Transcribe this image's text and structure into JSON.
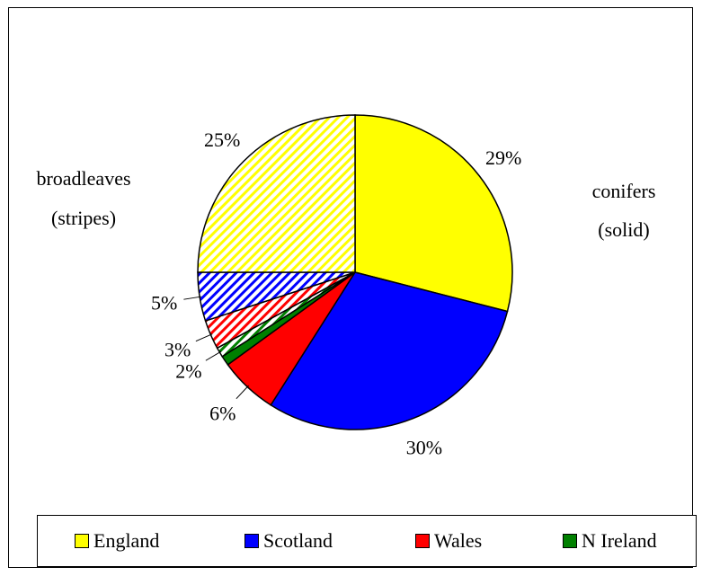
{
  "chart_data": {
    "type": "pie",
    "annotations": {
      "broadleaves_line1": "broadleaves",
      "broadleaves_line2": "(stripes)",
      "conifers_line1": "conifers",
      "conifers_line2": "(solid)"
    },
    "slices": [
      {
        "group": "conifers",
        "region": "England",
        "value": 29,
        "label": "29%",
        "color": "#ffff00",
        "pattern": "solid"
      },
      {
        "group": "conifers",
        "region": "Scotland",
        "value": 30,
        "label": "30%",
        "color": "#0000ff",
        "pattern": "solid"
      },
      {
        "group": "conifers",
        "region": "Wales",
        "value": 6,
        "label": "6%",
        "color": "#ff0000",
        "pattern": "solid"
      },
      {
        "group": "conifers",
        "region": "N Ireland",
        "value": 1,
        "label": "",
        "color": "#008000",
        "pattern": "solid"
      },
      {
        "group": "broadleaves",
        "region": "N Ireland",
        "value": 1,
        "label": "2%",
        "color": "#008000",
        "pattern": "stripes"
      },
      {
        "group": "broadleaves",
        "region": "Wales",
        "value": 3,
        "label": "3%",
        "color": "#ff0000",
        "pattern": "stripes"
      },
      {
        "group": "broadleaves",
        "region": "Scotland",
        "value": 5,
        "label": "5%",
        "color": "#0000ff",
        "pattern": "stripes"
      },
      {
        "group": "broadleaves",
        "region": "England",
        "value": 25,
        "label": "25%",
        "color": "#ffff00",
        "pattern": "stripes"
      }
    ],
    "legend": [
      {
        "name": "England",
        "color": "#ffff00"
      },
      {
        "name": "Scotland",
        "color": "#0000ff"
      },
      {
        "name": "Wales",
        "color": "#ff0000"
      },
      {
        "name": "N Ireland",
        "color": "#008000"
      }
    ],
    "legend_position": "bottom"
  }
}
